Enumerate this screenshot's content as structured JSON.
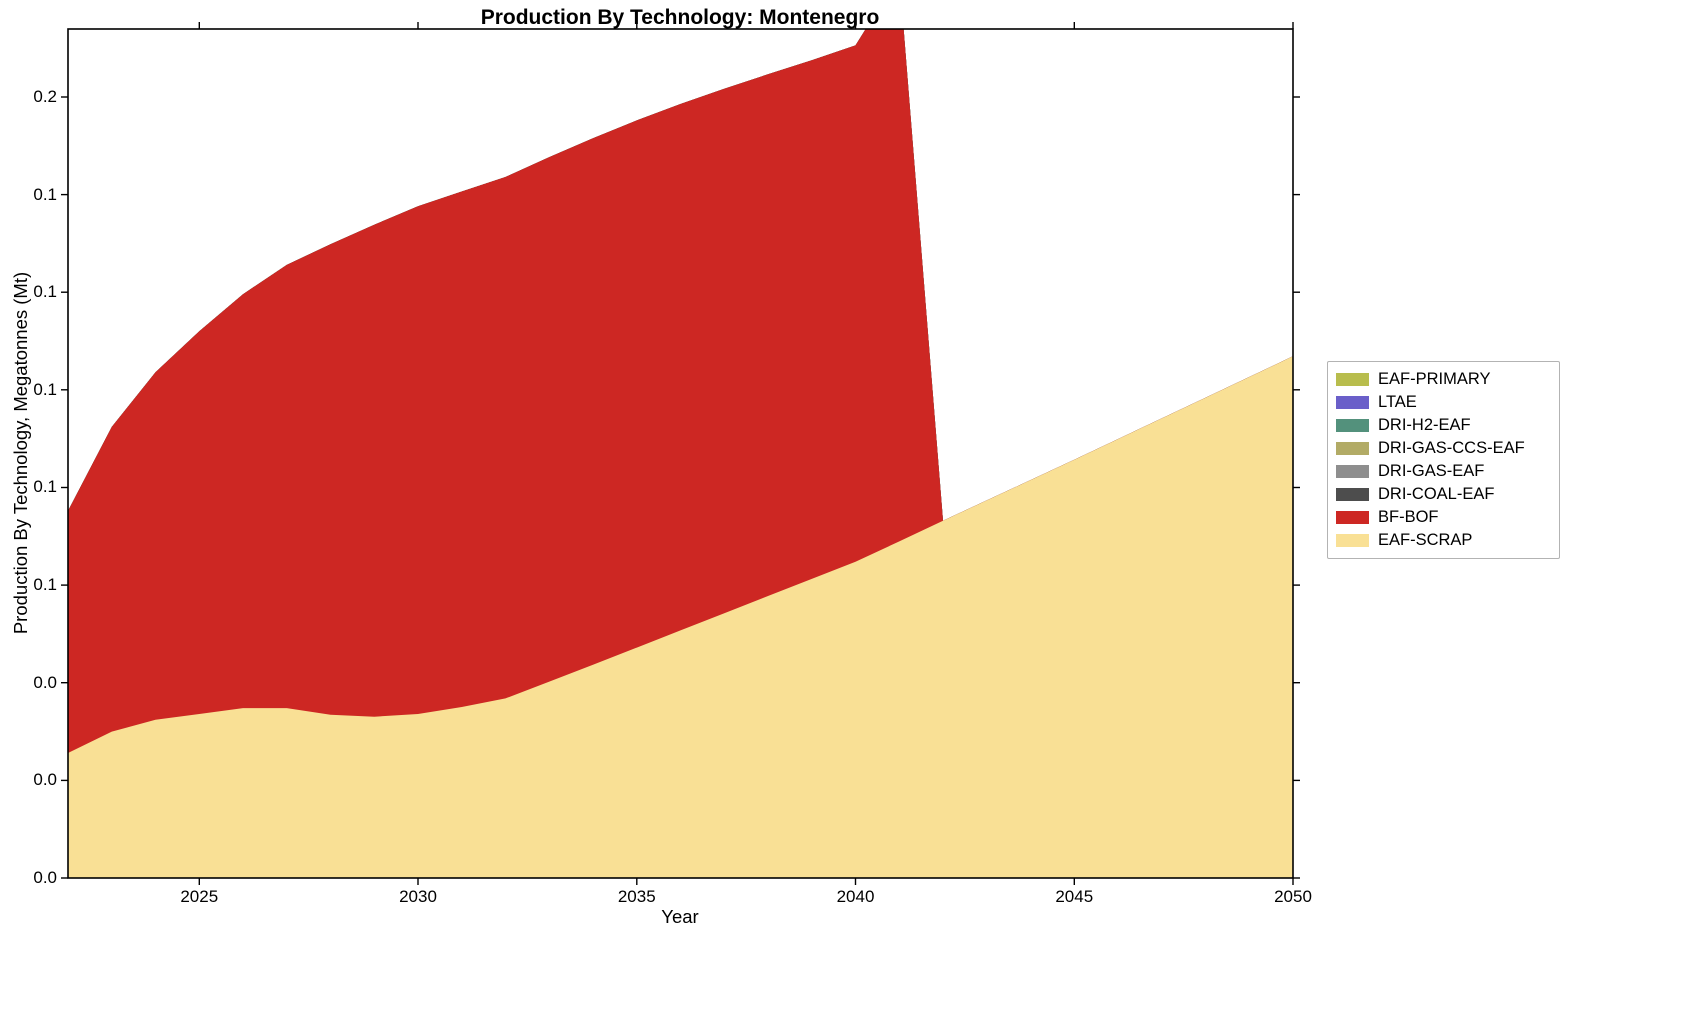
{
  "title": "Production By Technology: Montenegro",
  "xlabel": "Year",
  "ylabel": "Production By Technology, Megatonnes (Mt)",
  "background_color": "#ffffff",
  "axis_color": "#000000",
  "legend": {
    "position": "right-outside",
    "border_color": "#b3b3b3",
    "entries": [
      {
        "label": "EAF-PRIMARY",
        "color": "#b8bd4d"
      },
      {
        "label": "LTAE",
        "color": "#6a5fc9"
      },
      {
        "label": "DRI-H2-EAF",
        "color": "#53917c"
      },
      {
        "label": "DRI-GAS-CCS-EAF",
        "color": "#b2ab66"
      },
      {
        "label": "DRI-GAS-EAF",
        "color": "#8e8e8e"
      },
      {
        "label": "DRI-COAL-EAF",
        "color": "#4d4d4d"
      },
      {
        "label": "BF-BOF",
        "color": "#cd2723"
      },
      {
        "label": "EAF-SCRAP",
        "color": "#f9e095"
      }
    ]
  },
  "axes": {
    "x_range": [
      2022,
      2050
    ],
    "y_range": [
      0,
      0.2174
    ],
    "x_tick_values": [
      2025,
      2030,
      2035,
      2040,
      2045,
      2050
    ],
    "x_tick_labels": [
      "2025",
      "2030",
      "2035",
      "2040",
      "2045",
      "2050"
    ],
    "y_tick_values": [
      0,
      0.025,
      0.05,
      0.075,
      0.1,
      0.125,
      0.15,
      0.175,
      0.2
    ],
    "y_tick_labels": [
      "0.0",
      "0.0",
      "0.0",
      "0.1",
      "0.1",
      "0.1",
      "0.1",
      "0.1",
      "0.2"
    ],
    "grid": false,
    "box": true,
    "ticks_on_all_sides": true
  },
  "chart_data": {
    "type": "area",
    "stacked": true,
    "title": "Production By Technology: Montenegro",
    "xlabel": "Year",
    "ylabel": "Production By Technology, Megatonnes (Mt)",
    "xlim": [
      2022,
      2050
    ],
    "ylim": [
      0,
      0.2174
    ],
    "grid": false,
    "legend_position": "center-right-outside",
    "x": [
      2022,
      2023,
      2024,
      2025,
      2026,
      2027,
      2028,
      2029,
      2030,
      2031,
      2032,
      2033,
      2034,
      2035,
      2036,
      2037,
      2038,
      2039,
      2040,
      2041,
      2042,
      2043,
      2044,
      2045,
      2046,
      2047,
      2048,
      2049,
      2050
    ],
    "series": [
      {
        "name": "EAF-SCRAP",
        "color": "#f9e095",
        "values": [
          0.032,
          0.0375,
          0.0405,
          0.042,
          0.0435,
          0.0435,
          0.0418,
          0.0413,
          0.042,
          0.0438,
          0.046,
          0.0503,
          0.0546,
          0.059,
          0.0634,
          0.0678,
          0.0722,
          0.0766,
          0.081,
          0.0862,
          0.0915,
          0.0967,
          0.1019,
          0.1071,
          0.1124,
          0.1177,
          0.123,
          0.1283,
          0.1336
        ]
      },
      {
        "name": "BF-BOF",
        "color": "#cd2723",
        "values": [
          0.062,
          0.078,
          0.089,
          0.098,
          0.106,
          0.1135,
          0.1205,
          0.126,
          0.13,
          0.132,
          0.1335,
          0.1343,
          0.1348,
          0.135,
          0.1348,
          0.1343,
          0.1336,
          0.1328,
          0.1322,
          0.145,
          0,
          0,
          0,
          0,
          0,
          0,
          0,
          0,
          0
        ]
      },
      {
        "name": "DRI-COAL-EAF",
        "color": "#4d4d4d",
        "values": [
          0,
          0,
          0,
          0,
          0,
          0,
          0,
          0,
          0,
          0,
          0,
          0,
          0,
          0,
          0,
          0,
          0,
          0,
          0,
          0,
          0,
          0,
          0,
          0,
          0,
          0,
          0,
          0,
          0
        ]
      },
      {
        "name": "DRI-GAS-EAF",
        "color": "#8e8e8e",
        "values": [
          0,
          0,
          0,
          0,
          0,
          0,
          0,
          0,
          0,
          0,
          0,
          0,
          0,
          0,
          0,
          0,
          0,
          0,
          0,
          0,
          0,
          0,
          0,
          0,
          0,
          0,
          0,
          0,
          0
        ]
      },
      {
        "name": "DRI-GAS-CCS-EAF",
        "color": "#b2ab66",
        "values": [
          0,
          0,
          0,
          0,
          0,
          0,
          0,
          0,
          0,
          0,
          0,
          0,
          0,
          0,
          0,
          0,
          0,
          0,
          0,
          0,
          0,
          0,
          0,
          0,
          0,
          0,
          0,
          0,
          0
        ]
      },
      {
        "name": "DRI-H2-EAF",
        "color": "#53917c",
        "values": [
          0,
          0,
          0,
          0,
          0,
          0,
          0,
          0,
          0,
          0,
          0,
          0,
          0,
          0,
          0,
          0,
          0,
          0,
          0,
          0,
          0,
          0,
          0,
          0,
          0,
          0,
          0,
          0,
          0
        ]
      },
      {
        "name": "LTAE",
        "color": "#6a5fc9",
        "values": [
          0,
          0,
          0,
          0,
          0,
          0,
          0,
          0,
          0,
          0,
          0,
          0,
          0,
          0,
          0,
          0,
          0,
          0,
          0,
          0,
          0,
          0,
          0,
          0,
          0,
          0,
          0,
          0,
          0
        ]
      },
      {
        "name": "EAF-PRIMARY",
        "color": "#b8bd4d",
        "values": [
          0,
          0,
          0,
          0,
          0,
          0,
          0,
          0,
          0,
          0,
          0,
          0,
          0,
          0,
          0,
          0,
          0,
          0,
          0,
          0,
          0,
          0,
          0,
          0,
          0,
          0,
          0,
          0,
          0
        ]
      }
    ]
  }
}
